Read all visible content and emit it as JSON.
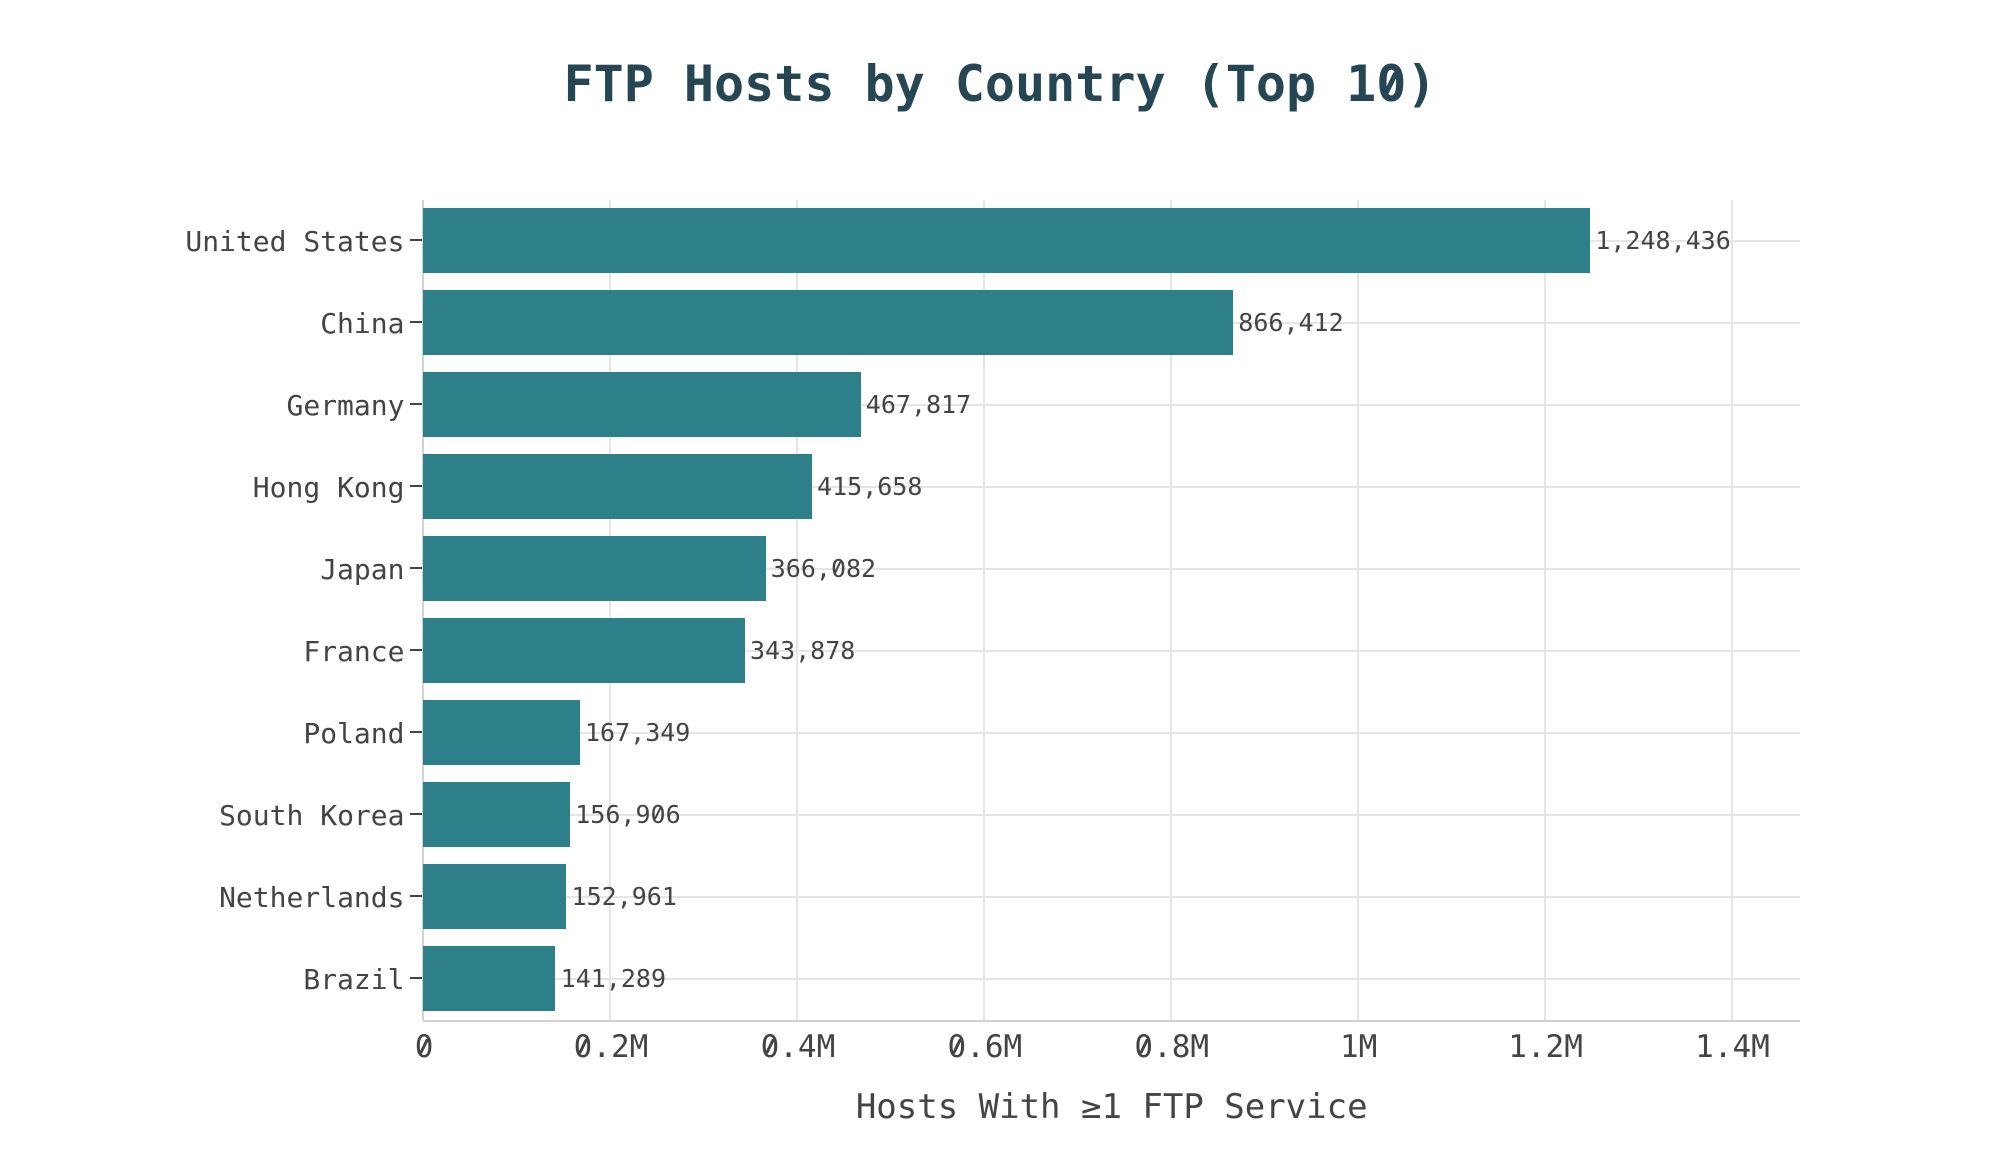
{
  "chart_data": {
    "type": "bar",
    "orientation": "horizontal",
    "title": "FTP Hosts by Country (Top 10)",
    "xlabel": "Hosts With ≥1 FTP Service",
    "ylabel": "",
    "categories": [
      "United States",
      "China",
      "Germany",
      "Hong Kong",
      "Japan",
      "France",
      "Poland",
      "South Korea",
      "Netherlands",
      "Brazil"
    ],
    "values": [
      1248436,
      866412,
      467817,
      415658,
      366082,
      343878,
      167349,
      156906,
      152961,
      141289
    ],
    "value_labels": [
      "1,248,436",
      "866,412",
      "467,817",
      "415,658",
      "366,082",
      "343,878",
      "167,349",
      "156,906",
      "152,961",
      "141,289"
    ],
    "x_tick_values": [
      0,
      200000,
      400000,
      600000,
      800000,
      1000000,
      1200000,
      1400000
    ],
    "x_tick_labels": [
      "0",
      "0.2M",
      "0.4M",
      "0.6M",
      "0.8M",
      "1M",
      "1.2M",
      "1.4M"
    ],
    "xlim": [
      0,
      1473000
    ],
    "grid": true,
    "legend_position": "none",
    "colors": {
      "bar": "#2d7f8a",
      "title": "#264653",
      "text": "#444444",
      "grid": "#e5e5e5",
      "zero_line": "#d2d2d2",
      "axis_line": "#d2d2d2",
      "background": "#ffffff"
    }
  }
}
